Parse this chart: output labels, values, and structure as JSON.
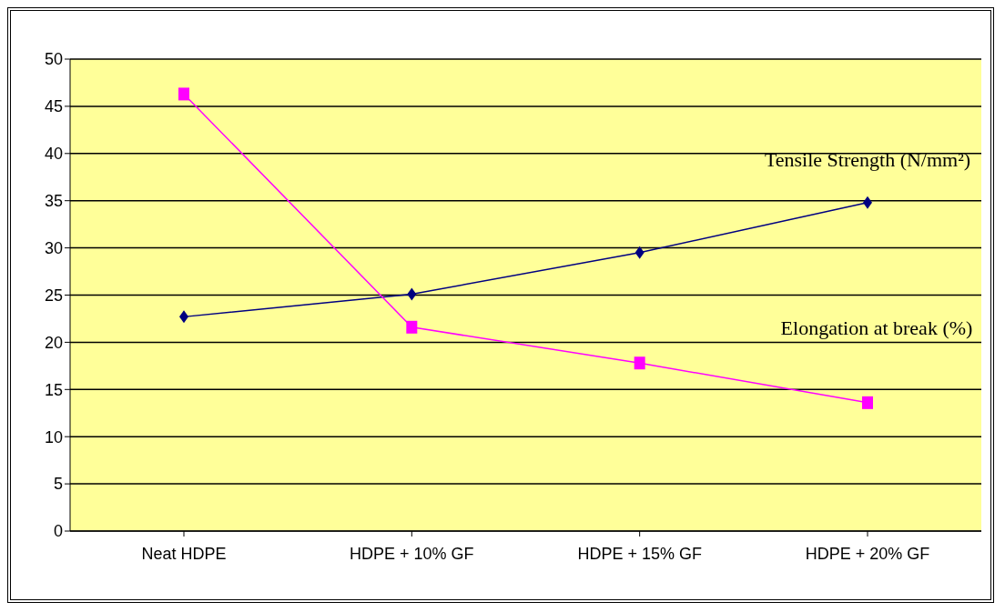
{
  "chart_data": {
    "type": "line",
    "categories": [
      "Neat HDPE",
      "HDPE + 10% GF",
      "HDPE + 15% GF",
      "HDPE + 20% GF"
    ],
    "series": [
      {
        "name": "Tensile Strength (N/mm²)",
        "color": "#000080",
        "marker": "diamond",
        "values": [
          22.7,
          25.1,
          29.5,
          34.8
        ]
      },
      {
        "name": "Elongation at break (%)",
        "color": "#ff00ff",
        "marker": "square",
        "values": [
          46.3,
          21.6,
          17.8,
          13.6
        ]
      }
    ],
    "ylim": [
      0,
      50
    ],
    "yticks": [
      0,
      5,
      10,
      15,
      20,
      25,
      30,
      35,
      40,
      45,
      50
    ],
    "grid": "y"
  }
}
